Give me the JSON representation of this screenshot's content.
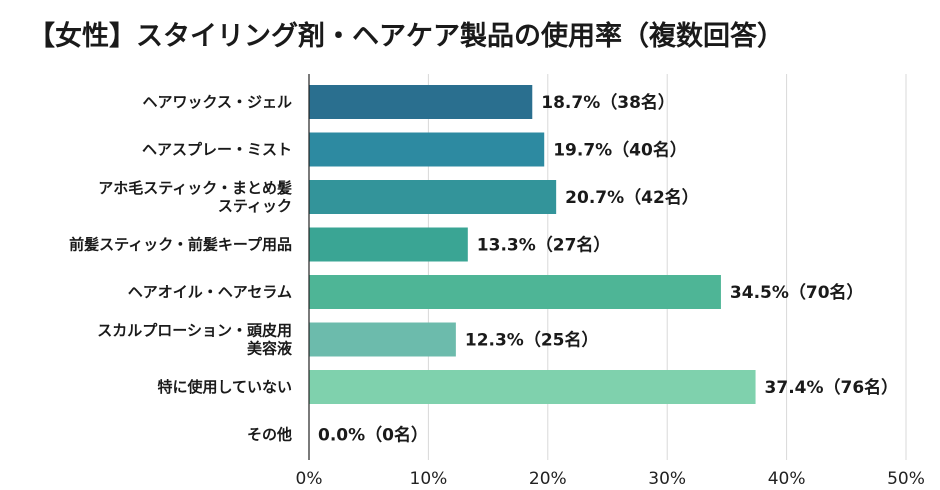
{
  "chart_data": {
    "type": "bar",
    "orientation": "horizontal",
    "title": "【女性】スタイリング剤・ヘアケア製品の使用率（複数回答）",
    "categories": [
      "ヘアワックス・ジェル",
      "ヘアスプレー・ミスト",
      "アホ毛スティック・まとめ髪スティック",
      "前髪スティック・前髪キープ用品",
      "ヘアオイル・ヘアセラム",
      "スカルプローション・頭皮用美容液",
      "特に使用していない",
      "その他"
    ],
    "category_lines": [
      [
        "ヘアワックス・ジェル"
      ],
      [
        "ヘアスプレー・ミスト"
      ],
      [
        "アホ毛スティック・まとめ髪",
        "スティック"
      ],
      [
        "前髪スティック・前髪キープ用品"
      ],
      [
        "ヘアオイル・ヘアセラム"
      ],
      [
        "スカルプローション・頭皮用",
        "美容液"
      ],
      [
        "特に使用していない"
      ],
      [
        "その他"
      ]
    ],
    "values": [
      18.7,
      19.7,
      20.7,
      13.3,
      34.5,
      12.3,
      37.4,
      0.0
    ],
    "data_labels": [
      "18.7%（38名）",
      "19.7%（40名）",
      "20.7%（42名）",
      "13.3%（27名）",
      "34.5%（70名）",
      "12.3%（25名）",
      "37.4%（76名）",
      "0.0%（0名）"
    ],
    "colors": [
      "#2a6f8f",
      "#2d8aa1",
      "#33949a",
      "#3aa594",
      "#4eb596",
      "#6cbbac",
      "#7fd1ad",
      "#8fd6b6"
    ],
    "xlim": [
      0,
      50
    ],
    "xticks": [
      0,
      10,
      20,
      30,
      40,
      50
    ],
    "xtick_labels": [
      "0%",
      "10%",
      "20%",
      "30%",
      "40%",
      "50%"
    ],
    "grid": true
  }
}
